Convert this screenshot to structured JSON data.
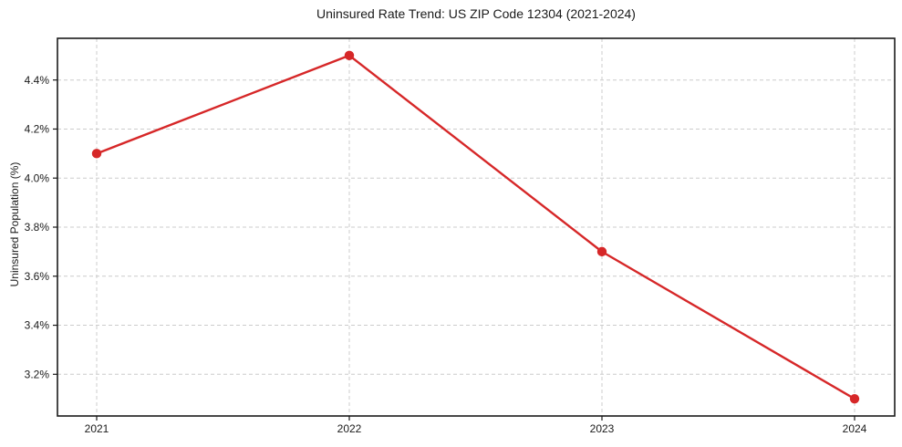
{
  "colors": {
    "line": "#d62728",
    "marker": "#d62728",
    "grid": "#cccccc",
    "spine": "#1a1a1a",
    "text": "#1a1a1a",
    "background": "#ffffff"
  },
  "chart_data": {
    "type": "line",
    "title": "Uninsured Rate Trend: US ZIP Code 12304 (2021-2024)",
    "xlabel": "",
    "ylabel": "Uninsured Population (%)",
    "x": [
      2021,
      2022,
      2023,
      2024
    ],
    "xtick_labels": [
      "2021",
      "2022",
      "2023",
      "2024"
    ],
    "series": [
      {
        "name": "Uninsured Population (%)",
        "values": [
          4.1,
          4.5,
          3.7,
          3.1
        ]
      }
    ],
    "yticks": [
      3.2,
      3.4,
      3.6,
      3.8,
      4.0,
      4.2,
      4.4
    ],
    "ytick_labels": [
      "3.2%",
      "3.4%",
      "3.6%",
      "3.8%",
      "4.0%",
      "4.2%",
      "4.4%"
    ],
    "ylim": [
      3.03,
      4.57
    ],
    "grid": true,
    "grid_style": "dashed",
    "legend_position": "none",
    "marker": "circle"
  }
}
